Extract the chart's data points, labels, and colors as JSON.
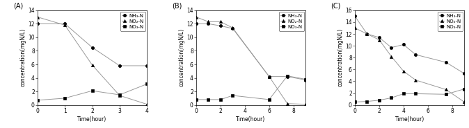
{
  "panels": [
    {
      "label": "(A)",
      "xlabel": "Time(hour)",
      "ylabel": "concentration(mgN/L)",
      "xlim": [
        0,
        4
      ],
      "ylim": [
        0,
        14
      ],
      "yticks": [
        0,
        2,
        4,
        6,
        8,
        10,
        12,
        14
      ],
      "xticks": [
        0,
        1,
        2,
        3,
        4
      ],
      "NH3_x": [
        0,
        1,
        2,
        3,
        4
      ],
      "NH3_y": [
        12.0,
        12.0,
        8.5,
        5.8,
        5.8
      ],
      "NO2_x": [
        0,
        1,
        2,
        3,
        4
      ],
      "NO2_y": [
        13.0,
        11.8,
        5.9,
        1.4,
        0.1
      ],
      "NO3_x": [
        0,
        1,
        2,
        3,
        4
      ],
      "NO3_y": [
        0.7,
        1.0,
        2.1,
        1.5,
        3.1
      ]
    },
    {
      "label": "(B)",
      "xlabel": "Time(hour)",
      "ylabel": "concentration(mgN/L)",
      "xlim": [
        0,
        9
      ],
      "ylim": [
        0,
        14
      ],
      "yticks": [
        0,
        2,
        4,
        6,
        8,
        10,
        12,
        14
      ],
      "xticks": [
        0,
        2,
        4,
        6,
        8
      ],
      "NH3_x": [
        0,
        1,
        2,
        3,
        6,
        7.5,
        9
      ],
      "NH3_y": [
        12.0,
        12.0,
        11.7,
        11.3,
        4.2,
        4.2,
        3.7
      ],
      "NO2_x": [
        0,
        1,
        2,
        3,
        6,
        7.5,
        9
      ],
      "NO2_y": [
        13.0,
        12.3,
        12.3,
        11.4,
        4.2,
        0.2,
        0.1
      ],
      "NO3_x": [
        0,
        1,
        2,
        3,
        6,
        7.5,
        9
      ],
      "NO3_y": [
        0.8,
        0.8,
        0.8,
        1.4,
        0.8,
        4.3,
        3.8
      ]
    },
    {
      "label": "(C)",
      "xlabel": "Time(hour)",
      "ylabel": "concentration(mgN/L)",
      "xlim": [
        0,
        9
      ],
      "ylim": [
        0,
        16
      ],
      "yticks": [
        0,
        2,
        4,
        6,
        8,
        10,
        12,
        14,
        16
      ],
      "xticks": [
        0,
        2,
        4,
        6,
        8
      ],
      "NH3_x": [
        0,
        1,
        2,
        3,
        4,
        5,
        7.5,
        9
      ],
      "NH3_y": [
        15.0,
        12.0,
        11.4,
        9.7,
        10.2,
        8.5,
        7.2,
        5.3
      ],
      "NO2_x": [
        0,
        1,
        2,
        3,
        4,
        5,
        7.5,
        9
      ],
      "NO2_y": [
        13.0,
        12.0,
        11.0,
        8.2,
        5.7,
        4.2,
        2.6,
        0.5
      ],
      "NO3_x": [
        0,
        1,
        2,
        3,
        4,
        5,
        7.5,
        9
      ],
      "NO3_y": [
        0.5,
        0.6,
        0.8,
        1.2,
        1.9,
        1.9,
        1.8,
        2.7
      ]
    }
  ],
  "line_color": "#999999",
  "marker_NH3": "o",
  "marker_NO2": "^",
  "marker_NO3": "s",
  "marker_size": 3.0,
  "marker_color": "black",
  "legend_labels": [
    "NH₃-N",
    "NO₂-N",
    "NO₃-N"
  ],
  "tick_fontsize": 5.5,
  "label_fontsize": 5.5,
  "panel_label_fontsize": 7.0,
  "legend_fontsize": 5.0
}
